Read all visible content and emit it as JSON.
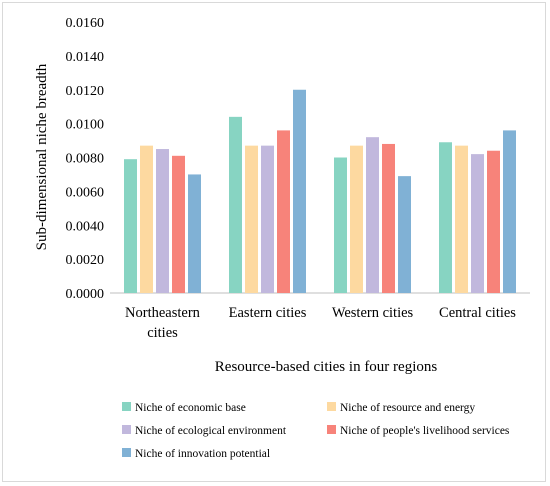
{
  "chart_data": {
    "type": "bar",
    "categories": [
      [
        "Northeastern",
        "cities"
      ],
      [
        "Eastern cities"
      ],
      [
        "Western cities"
      ],
      [
        "Central cities"
      ]
    ],
    "series": [
      {
        "name": "Niche of economic base",
        "color": "#87d4c2",
        "values": [
          0.0079,
          0.0104,
          0.008,
          0.0089
        ]
      },
      {
        "name": "Niche of resource and energy",
        "color": "#fdd9a0",
        "values": [
          0.0087,
          0.0087,
          0.0087,
          0.0087
        ]
      },
      {
        "name": "Niche of ecological environment",
        "color": "#c1b8dd",
        "values": [
          0.0085,
          0.0087,
          0.0092,
          0.0082
        ]
      },
      {
        "name": "Niche of people's livelihood services",
        "color": "#f7837a",
        "values": [
          0.0081,
          0.0096,
          0.0088,
          0.0084
        ]
      },
      {
        "name": "Niche of  innovation potential",
        "color": "#80b1d5",
        "values": [
          0.007,
          0.012,
          0.0069,
          0.0096
        ]
      }
    ],
    "ylabel": "Sub-dimensional niche breadth",
    "xlabel": "Resource-based cities in four regions",
    "ylim": [
      0,
      0.016
    ],
    "yticks": [
      "0.0000",
      "0.0020",
      "0.0040",
      "0.0060",
      "0.0080",
      "0.0100",
      "0.0120",
      "0.0140",
      "0.0160"
    ],
    "grid": false,
    "legend_position": "bottom"
  }
}
